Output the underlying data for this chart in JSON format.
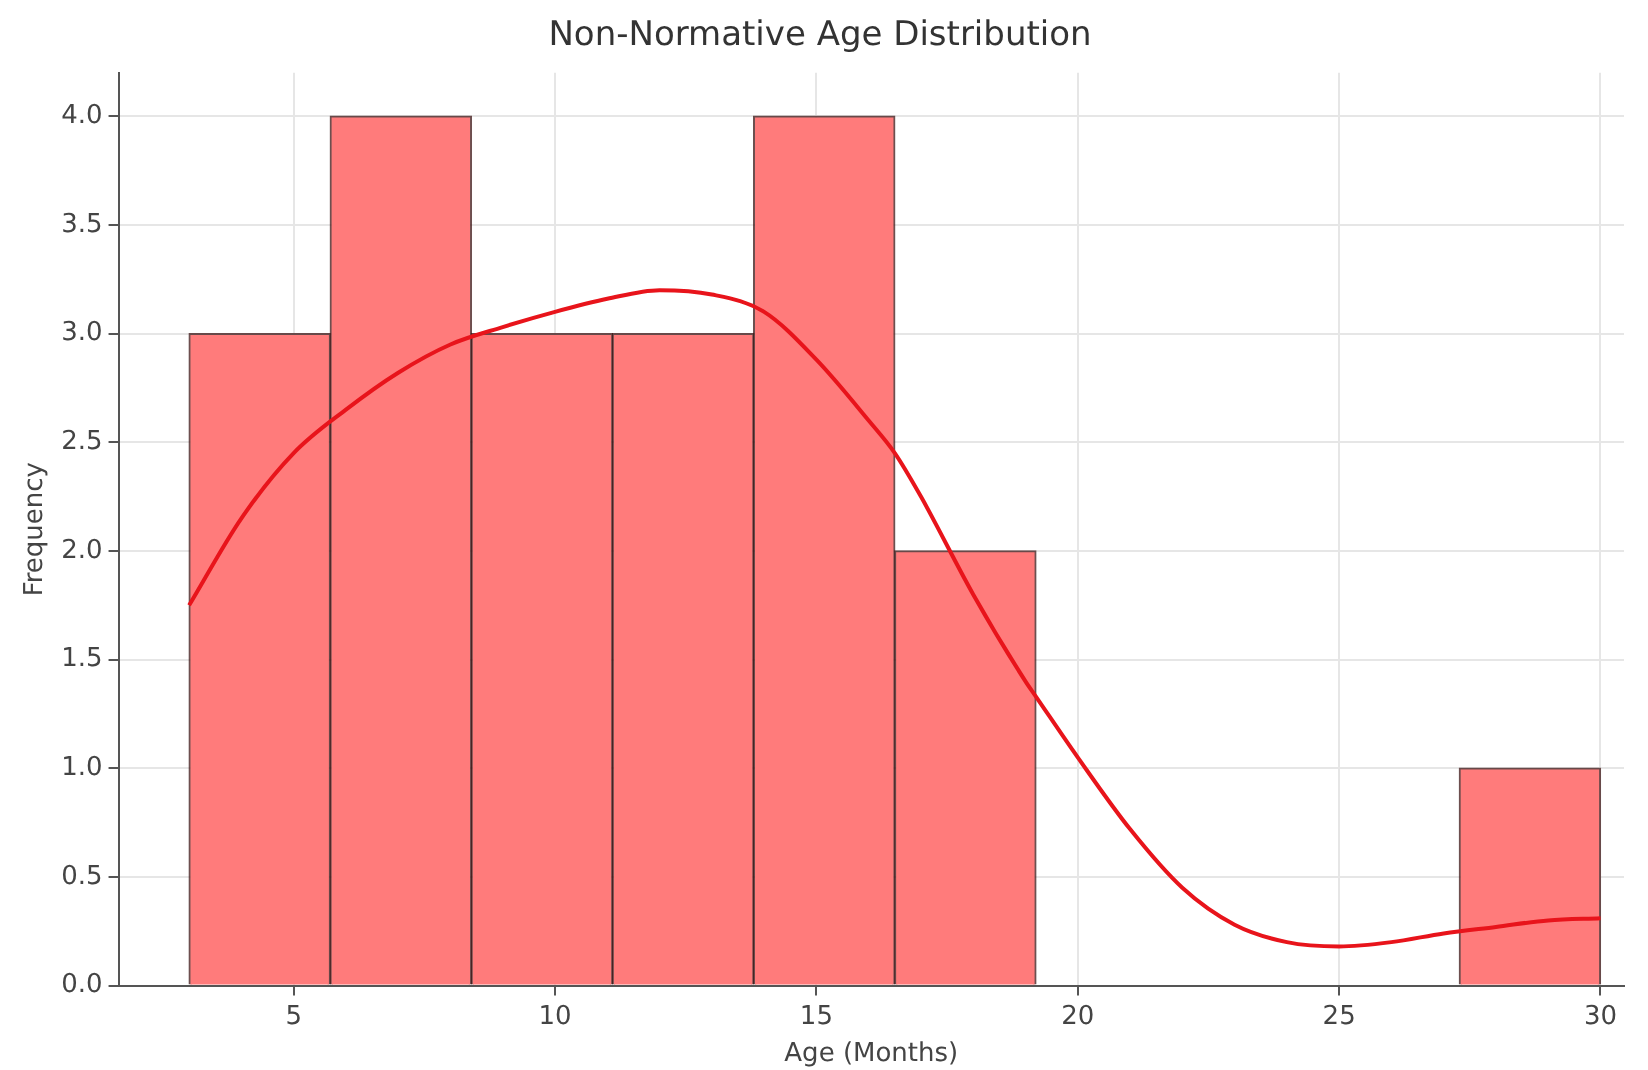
{
  "chart_data": {
    "type": "histogram",
    "title": "Non-Normative Age Distribution",
    "xlabel": "Age (Months)",
    "ylabel": "Frequency",
    "bins": [
      3,
      5.7,
      8.4,
      11.1,
      13.8,
      16.5,
      19.2,
      21.9,
      24.6,
      27.3,
      30
    ],
    "values": [
      3,
      4,
      3,
      3,
      4,
      2,
      0,
      0,
      0,
      1
    ],
    "color": "#ff7b7b",
    "series": [
      {
        "type": "line",
        "color": "#e8141b",
        "x": [
          3,
          4,
          5,
          6,
          7,
          8,
          9,
          10,
          11,
          12,
          13,
          14,
          15,
          16,
          16.5,
          17,
          18,
          19,
          19.2,
          20,
          21,
          22,
          23,
          24,
          25,
          26,
          27,
          28,
          29,
          30
        ],
        "values": [
          1.75,
          2.15,
          2.45,
          2.65,
          2.82,
          2.95,
          3.03,
          3.1,
          3.16,
          3.2,
          3.18,
          3.1,
          2.88,
          2.6,
          2.45,
          2.25,
          1.8,
          1.4,
          1.33,
          1.05,
          0.72,
          0.45,
          0.28,
          0.2,
          0.18,
          0.2,
          0.24,
          0.27,
          0.3,
          0.31
        ]
      }
    ],
    "xlim": [
      1.65,
      30.45
    ],
    "ylim": [
      0,
      4.2
    ],
    "xticks": [
      5,
      10,
      15,
      20,
      25,
      30
    ],
    "yticks": [
      {
        "value": 0,
        "label": "0.0"
      },
      {
        "value": 0.5,
        "label": "0.5"
      },
      {
        "value": 1,
        "label": "1.0"
      },
      {
        "value": 1.5,
        "label": "1.5"
      },
      {
        "value": 2,
        "label": "2.0"
      },
      {
        "value": 2.5,
        "label": "2.5"
      },
      {
        "value": 3,
        "label": "3.0"
      },
      {
        "value": 3.5,
        "label": "3.5"
      },
      {
        "value": 4,
        "label": "4.0"
      }
    ],
    "grid": true,
    "legend": false,
    "marker": "none",
    "line_style": "solid"
  }
}
